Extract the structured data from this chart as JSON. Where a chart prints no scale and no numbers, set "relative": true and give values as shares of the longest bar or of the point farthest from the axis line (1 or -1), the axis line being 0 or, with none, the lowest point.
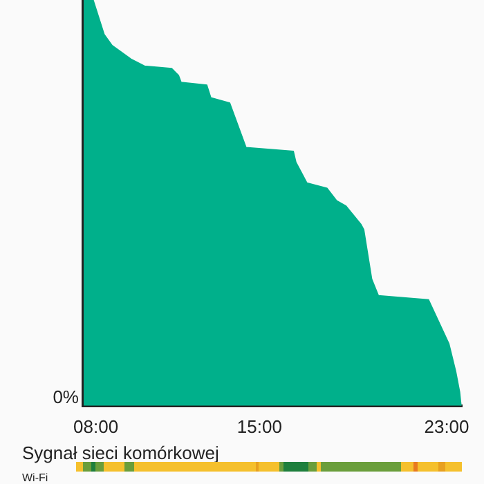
{
  "chart_data": {
    "type": "area",
    "relative": true,
    "x": [
      7.48,
      7.88,
      8.35,
      8.69,
      9.5,
      10.08,
      11.24,
      11.53,
      11.64,
      12.74,
      12.91,
      13.72,
      14.42,
      16.44,
      16.55,
      17.02,
      17.88,
      18.29,
      18.69,
      19.33,
      19.45,
      19.79,
      20.08,
      22.22,
      23.09,
      23.38,
      23.55,
      23.61
    ],
    "series": [
      {
        "color": "#00b08b",
        "values": [
          1,
          1,
          0.915,
          0.888,
          0.854,
          0.837,
          0.831,
          0.814,
          0.797,
          0.79,
          0.759,
          0.746,
          0.636,
          0.627,
          0.6,
          0.549,
          0.536,
          0.505,
          0.492,
          0.447,
          0.434,
          0.312,
          0.271,
          0.261,
          0.153,
          0.085,
          0.034,
          0
        ]
      }
    ],
    "xlim": [
      7.45,
      23.65
    ],
    "xticks": [
      {
        "value": 8,
        "label": "08:00"
      },
      {
        "value": 15,
        "label": "15:00"
      },
      {
        "value": 23,
        "label": "23:00"
      }
    ],
    "grid": false,
    "legend": false,
    "annotations": [
      "0%",
      "Sygnał sieci komórkowej",
      "Wi-Fi"
    ]
  }
}
